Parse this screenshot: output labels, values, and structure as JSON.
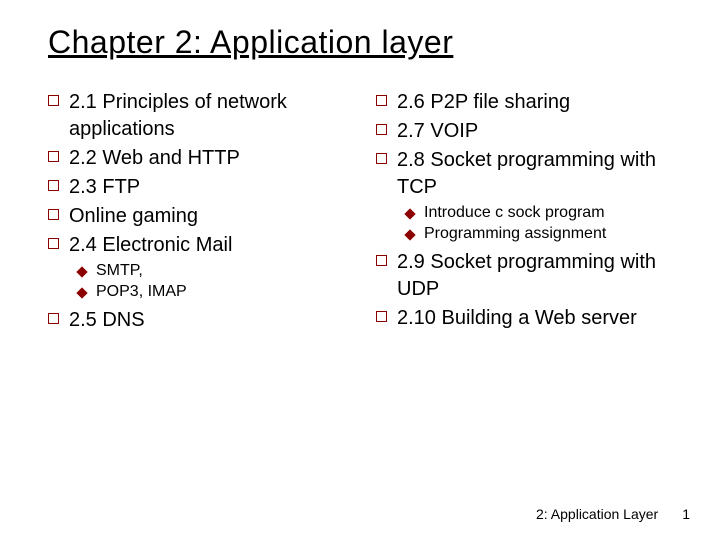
{
  "title": "Chapter 2: Application layer",
  "left": {
    "items": [
      {
        "text": "2.1 Principles of network applications",
        "sub": []
      },
      {
        "text": "2.2 Web and HTTP",
        "sub": []
      },
      {
        "text": "2.3 FTP",
        "sub": []
      },
      {
        "text": "Online gaming",
        "sub": []
      },
      {
        "text": "2.4 Electronic Mail",
        "sub": [
          "SMTP,",
          "POP3, IMAP"
        ]
      },
      {
        "text": "2.5 DNS",
        "sub": []
      }
    ]
  },
  "right": {
    "items": [
      {
        "text": "2.6 P2P file sharing",
        "sub": []
      },
      {
        "text": "2.7 VOIP",
        "sub": []
      },
      {
        "text": "2.8 Socket programming with TCP",
        "sub": [
          "Introduce c sock program",
          "Programming assignment"
        ]
      },
      {
        "text": "2.9 Socket programming with UDP",
        "sub": []
      },
      {
        "text": "2.10 Building a Web server",
        "sub": []
      }
    ]
  },
  "footer": {
    "label": "2: Application Layer",
    "page": "1"
  },
  "colors": {
    "bullet_border": "#8b0000",
    "diamond_fill": "#8b0000",
    "text": "#000000",
    "background": "#ffffff"
  }
}
